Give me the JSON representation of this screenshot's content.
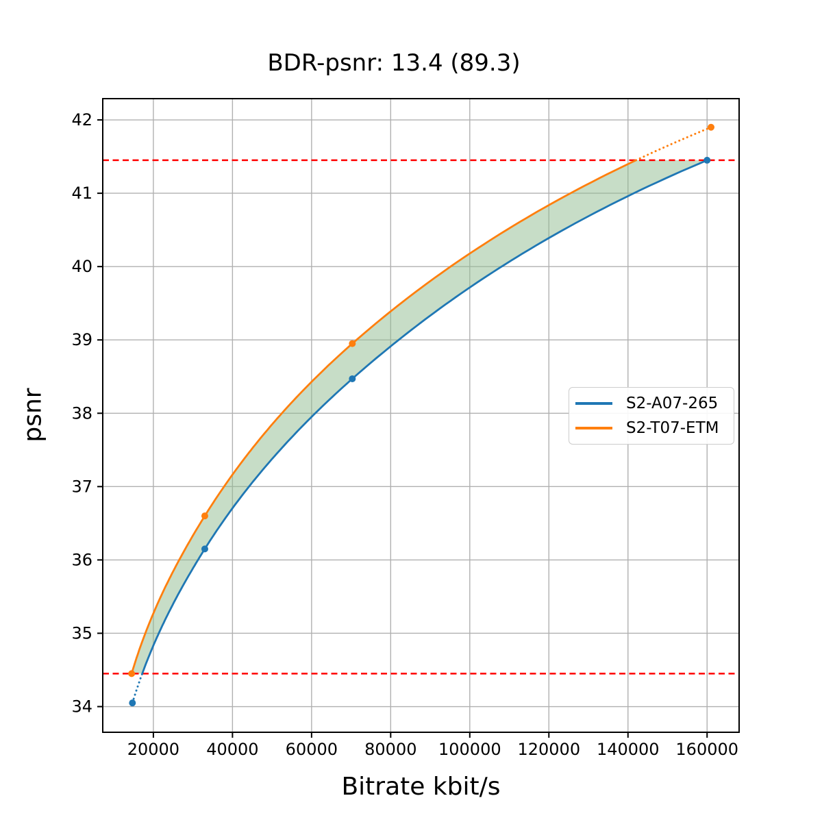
{
  "chart_data": {
    "type": "line",
    "title": "BDR-psnr: 13.4 (89.3)",
    "xlabel": "Bitrate kbit/s",
    "ylabel": "psnr",
    "xlim": [
      7200,
      168100
    ],
    "ylim": [
      33.65,
      42.29
    ],
    "xticks": [
      20000,
      40000,
      60000,
      80000,
      100000,
      120000,
      140000,
      160000
    ],
    "yticks": [
      34,
      35,
      36,
      37,
      38,
      39,
      40,
      41,
      42
    ],
    "grid": true,
    "grid_color": "#b0b0b0",
    "series": [
      {
        "name": "S2-A07-265",
        "color": "#1f77b4",
        "marker": "circle",
        "points": [
          [
            14700,
            34.05
          ],
          [
            33000,
            36.15
          ],
          [
            70300,
            38.47
          ],
          [
            160000,
            41.45
          ]
        ]
      },
      {
        "name": "S2-T07-ETM",
        "color": "#ff7f0e",
        "marker": "circle",
        "points": [
          [
            14500,
            34.45
          ],
          [
            33000,
            36.6
          ],
          [
            70300,
            38.95
          ],
          [
            161000,
            41.9
          ]
        ]
      }
    ],
    "bd_interval_lines": {
      "color": "#ff0000",
      "style": "dashed",
      "psnr_low": 34.45,
      "psnr_high": 41.45
    },
    "shaded_region": {
      "between": [
        "S2-T07-ETM",
        "S2-A07-265"
      ],
      "psnr_bounds": [
        34.45,
        41.45
      ],
      "color": "#8fbc8f",
      "opacity": 0.5
    },
    "out_of_range_style": "dotted",
    "legend": {
      "position": "right-center",
      "entries": [
        "S2-A07-265",
        "S2-T07-ETM"
      ]
    }
  }
}
